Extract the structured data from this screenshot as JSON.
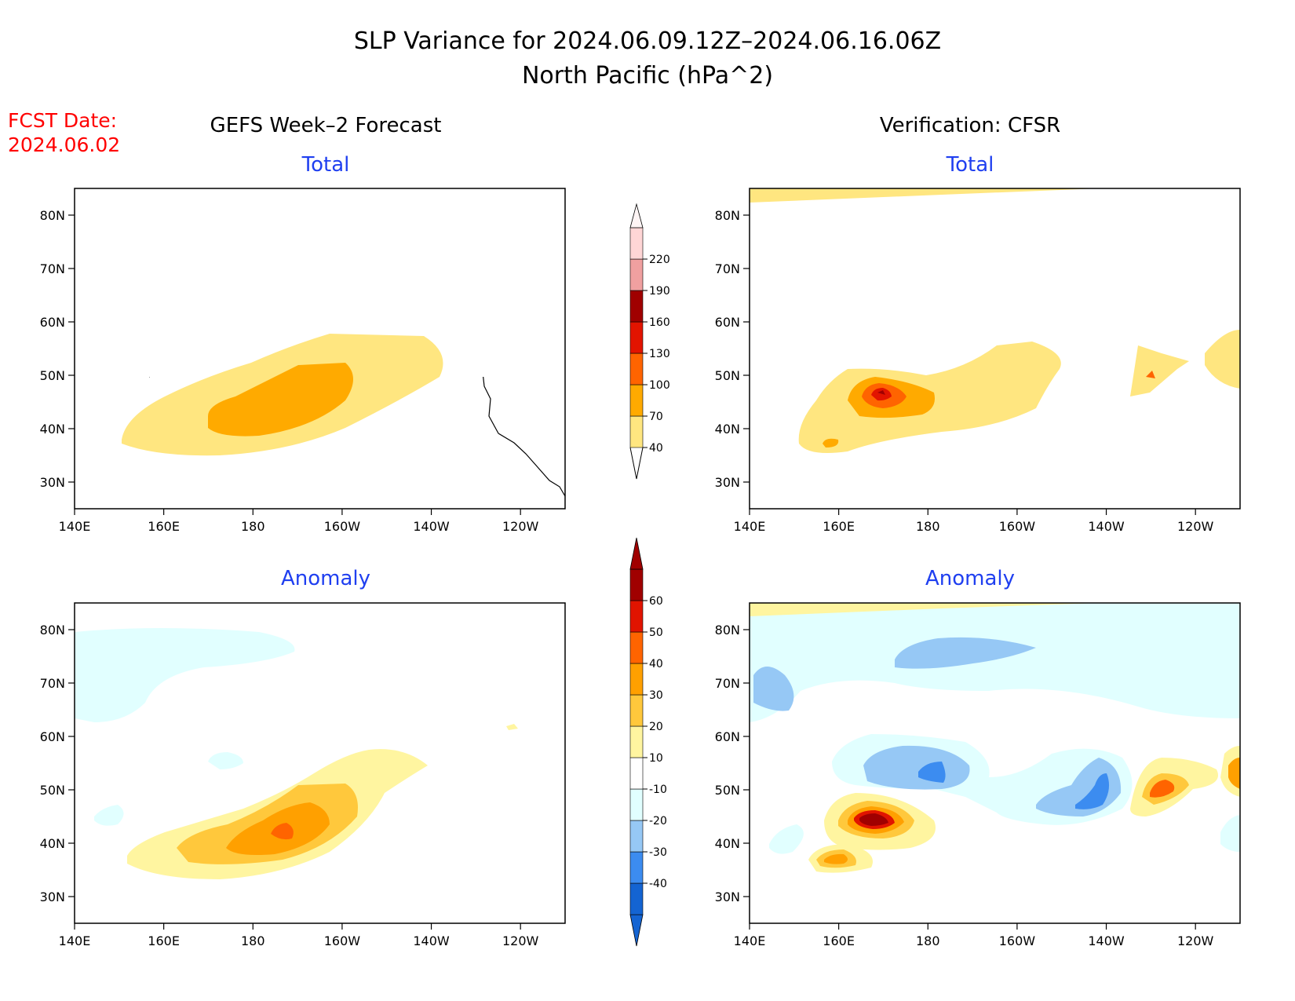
{
  "title": {
    "line1": "SLP Variance for 2024.06.09.12Z–2024.06.16.06Z",
    "line2": "North Pacific (hPa^2)"
  },
  "fcst_date": {
    "label": "FCST Date:",
    "value": "2024.06.02"
  },
  "columns": {
    "left": "GEFS Week–2 Forecast",
    "right": "Verification: CFSR"
  },
  "panels": {
    "fcst_total": {
      "title": "Total"
    },
    "fcst_anom": {
      "title": "Anomaly"
    },
    "ver_total": {
      "title": "Total"
    },
    "ver_anom": {
      "title": "Anomaly"
    }
  },
  "axes": {
    "lat_labels": [
      "80N",
      "70N",
      "60N",
      "50N",
      "40N",
      "30N"
    ],
    "lat_values": [
      80,
      70,
      60,
      50,
      40,
      30
    ],
    "lon_labels": [
      "140E",
      "160E",
      "180",
      "160W",
      "140W",
      "120W"
    ],
    "lon_values": [
      140,
      160,
      180,
      200,
      220,
      240
    ],
    "lon_range": [
      140,
      250
    ],
    "lat_range": [
      25,
      85
    ]
  },
  "colors": {
    "coast": "#000000",
    "panel_title": "#1f3ff0",
    "fcst_date": "#ff0000"
  },
  "colorbars": {
    "total": {
      "labels": [
        "40",
        "70",
        "100",
        "130",
        "160",
        "190",
        "220"
      ],
      "colors": [
        "#ffe680",
        "#ffaa00",
        "#ff6400",
        "#e21400",
        "#a00000",
        "#f0a0a0",
        "#ffd6d6"
      ]
    },
    "anomaly": {
      "labels": [
        "-40",
        "-30",
        "-20",
        "-10",
        "10",
        "20",
        "30",
        "40",
        "50",
        "60"
      ],
      "colors": [
        "#1464d2",
        "#3c8cf0",
        "#96c8f5",
        "#e1ffff",
        "#ffffff",
        "#fff5a0",
        "#ffc83c",
        "#ffa000",
        "#ff6400",
        "#e11400",
        "#a00000"
      ]
    }
  }
}
